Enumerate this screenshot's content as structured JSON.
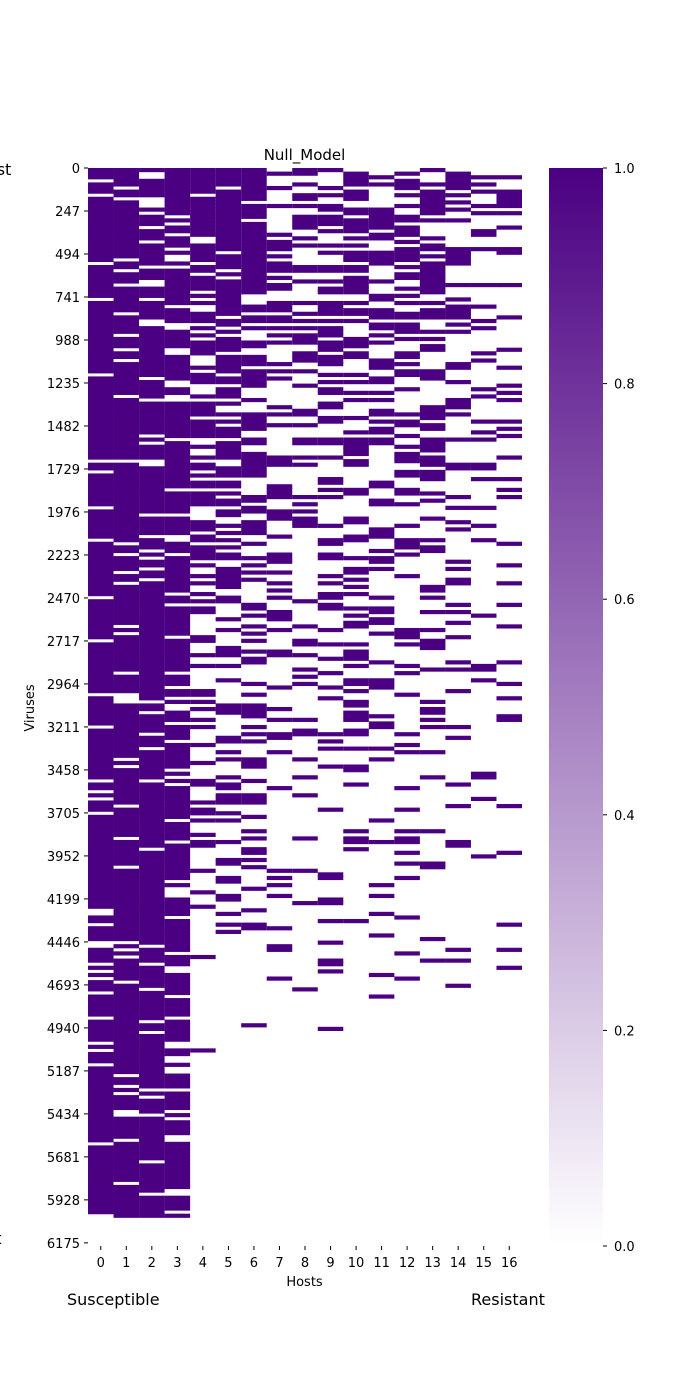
{
  "chart_data": {
    "type": "heatmap",
    "title": "Null_Model",
    "xlabel": "Hosts",
    "ylabel": "Viruses",
    "x_ticks": [
      "0",
      "1",
      "2",
      "3",
      "4",
      "5",
      "6",
      "7",
      "8",
      "9",
      "10",
      "11",
      "12",
      "13",
      "14",
      "15",
      "16"
    ],
    "y_ticks": [
      "0",
      "247",
      "494",
      "741",
      "988",
      "1235",
      "1482",
      "1729",
      "1976",
      "2223",
      "2470",
      "2717",
      "2964",
      "3211",
      "3458",
      "3705",
      "3952",
      "4199",
      "4446",
      "4693",
      "4940",
      "5187",
      "5434",
      "5681",
      "5928",
      "6175"
    ],
    "n_rows": 6175,
    "n_cols": 17,
    "value_range": [
      0,
      1
    ],
    "colorbar_ticks": [
      "0.0",
      "0.2",
      "0.4",
      "0.6",
      "0.8",
      "1.0"
    ],
    "colormap": {
      "low": "#ffffff",
      "high": "#4b0082"
    },
    "approx_fill_fraction_by_host": [
      0.88,
      0.86,
      0.86,
      0.8,
      0.35,
      0.4,
      0.38,
      0.25,
      0.25,
      0.28,
      0.28,
      0.26,
      0.28,
      0.22,
      0.15,
      0.12,
      0.14
    ],
    "approx_filled_rows_extent_by_host": [
      5995,
      5995,
      5995,
      5995,
      5995,
      5995,
      5995,
      5995,
      5995,
      5995,
      5995,
      5995,
      5995,
      5995,
      5995,
      5995,
      5995
    ]
  },
  "annotations": {
    "corner_top": "alist",
    "corner_bottom": "list",
    "footer_left": "Susceptible",
    "footer_right": "Resistant"
  }
}
